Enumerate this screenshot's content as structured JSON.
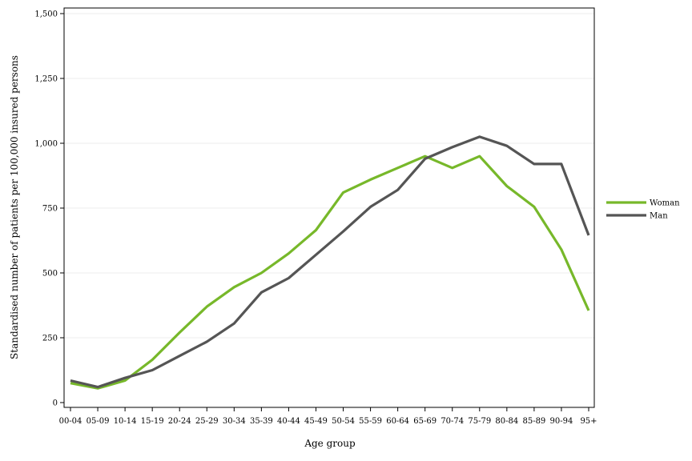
{
  "chart_data": {
    "type": "line",
    "title": "",
    "xlabel": "Age group",
    "ylabel": "Standardised number of patients per 100,000 insured persons",
    "categories": [
      "00-04",
      "05-09",
      "10-14",
      "15-19",
      "20-24",
      "25-29",
      "30-34",
      "35-39",
      "40-44",
      "45-49",
      "50-54",
      "55-59",
      "60-64",
      "65-69",
      "70-74",
      "75-79",
      "80-84",
      "85-89",
      "90-94",
      "95+"
    ],
    "yticks": [
      0,
      250,
      500,
      750,
      1000,
      1250,
      1500
    ],
    "ytick_labels": [
      "0",
      "250",
      "500",
      "750",
      "1,000",
      "1,250",
      "1,500"
    ],
    "ylim": [
      0,
      1500
    ],
    "grid": true,
    "legend_position": "right",
    "series": [
      {
        "name": "Woman",
        "color": "#77b82a",
        "values": [
          75,
          55,
          85,
          165,
          270,
          370,
          445,
          500,
          575,
          665,
          810,
          860,
          905,
          950,
          905,
          950,
          835,
          755,
          590,
          355
        ]
      },
      {
        "name": "Man",
        "color": "#555555",
        "values": [
          85,
          60,
          95,
          125,
          180,
          235,
          305,
          425,
          480,
          570,
          660,
          755,
          820,
          940,
          985,
          1025,
          990,
          920,
          920,
          645
        ]
      }
    ]
  }
}
